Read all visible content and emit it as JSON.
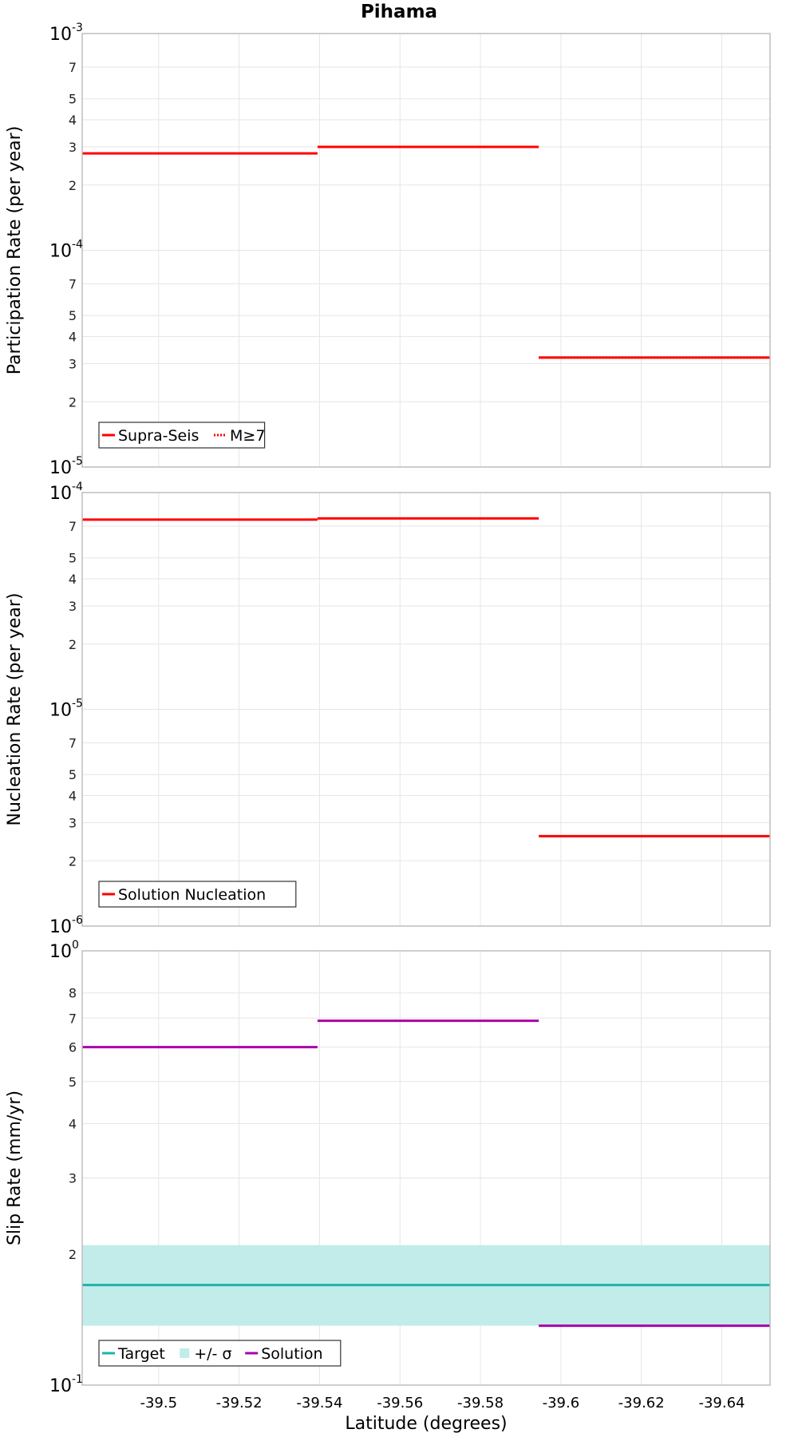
{
  "chart_data": [
    {
      "type": "line",
      "title": "Pihama",
      "xlabel": "",
      "ylabel": "Participation Rate (per year)",
      "yscale": "log",
      "ylim": [
        1e-05,
        0.001
      ],
      "xlim": [
        -39.481,
        -39.652
      ],
      "x_ticks": [
        -39.5,
        -39.52,
        -39.54,
        -39.56,
        -39.58,
        -39.6,
        -39.62,
        -39.64
      ],
      "x_tick_labels": [],
      "y_major_ticks": [
        {
          "value": 0.001,
          "base": "10",
          "exp": "-3"
        },
        {
          "value": 0.0001,
          "base": "10",
          "exp": "-4"
        },
        {
          "value": 1e-05,
          "base": "10",
          "exp": "-5"
        }
      ],
      "y_minor_ticks": [
        {
          "value": 0.0007,
          "label": "7"
        },
        {
          "value": 0.0005,
          "label": "5"
        },
        {
          "value": 0.0004,
          "label": "4"
        },
        {
          "value": 0.0003,
          "label": "3"
        },
        {
          "value": 0.0002,
          "label": "2"
        },
        {
          "value": 7e-05,
          "label": "7"
        },
        {
          "value": 5e-05,
          "label": "5"
        },
        {
          "value": 4e-05,
          "label": "4"
        },
        {
          "value": 3e-05,
          "label": "3"
        },
        {
          "value": 2e-05,
          "label": "2"
        }
      ],
      "grid": true,
      "legend_position": "bottom-left",
      "series": [
        {
          "name": "Supra-Seis",
          "color": "#ff0000",
          "style": "solid",
          "segments": [
            {
              "x": [
                -39.481,
                -39.5395
              ],
              "y": 0.00028
            },
            {
              "x": [
                -39.5395,
                -39.5945
              ],
              "y": 0.0003
            },
            {
              "x": [
                -39.5945,
                -39.652
              ],
              "y": 3.2e-05
            }
          ]
        },
        {
          "name": "M≥7",
          "color": "#ff0000",
          "style": "dotted",
          "segments": [
            {
              "x": [
                -39.5945,
                -39.652
              ],
              "y": 3.2e-05
            }
          ]
        }
      ]
    },
    {
      "type": "line",
      "title": "",
      "xlabel": "",
      "ylabel": "Nucleation Rate (per year)",
      "yscale": "log",
      "ylim": [
        1e-06,
        0.0001
      ],
      "xlim": [
        -39.481,
        -39.652
      ],
      "x_ticks": [
        -39.5,
        -39.52,
        -39.54,
        -39.56,
        -39.58,
        -39.6,
        -39.62,
        -39.64
      ],
      "x_tick_labels": [],
      "y_major_ticks": [
        {
          "value": 0.0001,
          "base": "10",
          "exp": "-4"
        },
        {
          "value": 1e-05,
          "base": "10",
          "exp": "-5"
        },
        {
          "value": 1e-06,
          "base": "10",
          "exp": "-6"
        }
      ],
      "y_minor_ticks": [
        {
          "value": 7e-05,
          "label": "7"
        },
        {
          "value": 5e-05,
          "label": "5"
        },
        {
          "value": 4e-05,
          "label": "4"
        },
        {
          "value": 3e-05,
          "label": "3"
        },
        {
          "value": 2e-05,
          "label": "2"
        },
        {
          "value": 7e-06,
          "label": "7"
        },
        {
          "value": 5e-06,
          "label": "5"
        },
        {
          "value": 4e-06,
          "label": "4"
        },
        {
          "value": 3e-06,
          "label": "3"
        },
        {
          "value": 2e-06,
          "label": "2"
        }
      ],
      "grid": true,
      "legend_position": "bottom-left",
      "series": [
        {
          "name": "Solution Nucleation",
          "color": "#ff0000",
          "style": "solid",
          "segments": [
            {
              "x": [
                -39.481,
                -39.5395
              ],
              "y": 7.5e-05
            },
            {
              "x": [
                -39.5395,
                -39.5945
              ],
              "y": 7.6e-05
            },
            {
              "x": [
                -39.5945,
                -39.652
              ],
              "y": 2.6e-06
            }
          ]
        }
      ]
    },
    {
      "type": "line",
      "title": "",
      "xlabel": "Latitude (degrees)",
      "ylabel": "Slip Rate (mm/yr)",
      "yscale": "log",
      "ylim": [
        0.1,
        1
      ],
      "xlim": [
        -39.481,
        -39.652
      ],
      "x_ticks": [
        -39.5,
        -39.52,
        -39.54,
        -39.56,
        -39.58,
        -39.6,
        -39.62,
        -39.64
      ],
      "x_tick_labels": [
        "-39.5",
        "-39.52",
        "-39.54",
        "-39.56",
        "-39.58",
        "-39.6",
        "-39.62",
        "-39.64"
      ],
      "y_major_ticks": [
        {
          "value": 1,
          "base": "10",
          "exp": "0"
        },
        {
          "value": 0.1,
          "base": "10",
          "exp": "-1"
        }
      ],
      "y_minor_ticks": [
        {
          "value": 0.8,
          "label": "8"
        },
        {
          "value": 0.7,
          "label": "7"
        },
        {
          "value": 0.6,
          "label": "6"
        },
        {
          "value": 0.5,
          "label": "5"
        },
        {
          "value": 0.4,
          "label": "4"
        },
        {
          "value": 0.3,
          "label": "3"
        },
        {
          "value": 0.2,
          "label": "2"
        }
      ],
      "grid": true,
      "legend_position": "bottom-left",
      "series": [
        {
          "name": "Target",
          "color": "#20b2aa",
          "style": "solid",
          "segments": [
            {
              "x": [
                -39.481,
                -39.652
              ],
              "y": 0.17
            }
          ]
        },
        {
          "name": "+/- σ",
          "color": "#c2ecea",
          "style": "band",
          "band": {
            "x": [
              -39.481,
              -39.652
            ],
            "y_low": 0.137,
            "y_high": 0.21
          }
        },
        {
          "name": "Solution",
          "color": "#aa00aa",
          "style": "solid",
          "segments": [
            {
              "x": [
                -39.481,
                -39.5395
              ],
              "y": 0.6
            },
            {
              "x": [
                -39.5395,
                -39.5945
              ],
              "y": 0.69
            },
            {
              "x": [
                -39.5945,
                -39.652
              ],
              "y": 0.137
            }
          ]
        }
      ]
    }
  ]
}
